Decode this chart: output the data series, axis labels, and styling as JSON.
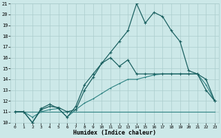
{
  "xlabel": "Humidex (Indice chaleur)",
  "bg_color": "#cce8e8",
  "grid_color": "#aacccc",
  "line_color_dark": "#1a6060",
  "line_color_mid": "#2a8080",
  "xlim": [
    -0.5,
    23.5
  ],
  "ylim": [
    10,
    21
  ],
  "yticks": [
    10,
    11,
    12,
    13,
    14,
    15,
    16,
    17,
    18,
    19,
    20,
    21
  ],
  "xticks": [
    0,
    1,
    2,
    3,
    4,
    5,
    6,
    7,
    8,
    9,
    10,
    11,
    12,
    13,
    14,
    15,
    16,
    17,
    18,
    19,
    20,
    21,
    22,
    23
  ],
  "series_main": [
    11,
    11,
    10,
    11.2,
    11.5,
    11.4,
    11,
    11.2,
    13,
    14.2,
    15.5,
    16.5,
    17.5,
    18.5,
    21,
    19.2,
    20.2,
    19.8,
    18.5,
    17.5,
    14.8,
    14.5,
    14,
    12
  ],
  "series_second": [
    11,
    11,
    10,
    11.3,
    11.7,
    11.3,
    10.5,
    11.5,
    13.5,
    14.5,
    15.5,
    16,
    15.2,
    15.8,
    14.5,
    14.5,
    14.5,
    14.5,
    14.5,
    14.5,
    14.5,
    14.5,
    13,
    12
  ],
  "series_flat": [
    11,
    11,
    11,
    11,
    11,
    11,
    11,
    11,
    11,
    11,
    11,
    11,
    11,
    11,
    11,
    11,
    11,
    11,
    11,
    11,
    11,
    11,
    11,
    11
  ],
  "series_diag": [
    11,
    11,
    10.5,
    11,
    11.2,
    11.3,
    10.5,
    11.2,
    11.8,
    12.2,
    12.7,
    13.2,
    13.6,
    14,
    14,
    14.2,
    14.4,
    14.5,
    14.5,
    14.5,
    14.5,
    14.5,
    13.5,
    12
  ]
}
